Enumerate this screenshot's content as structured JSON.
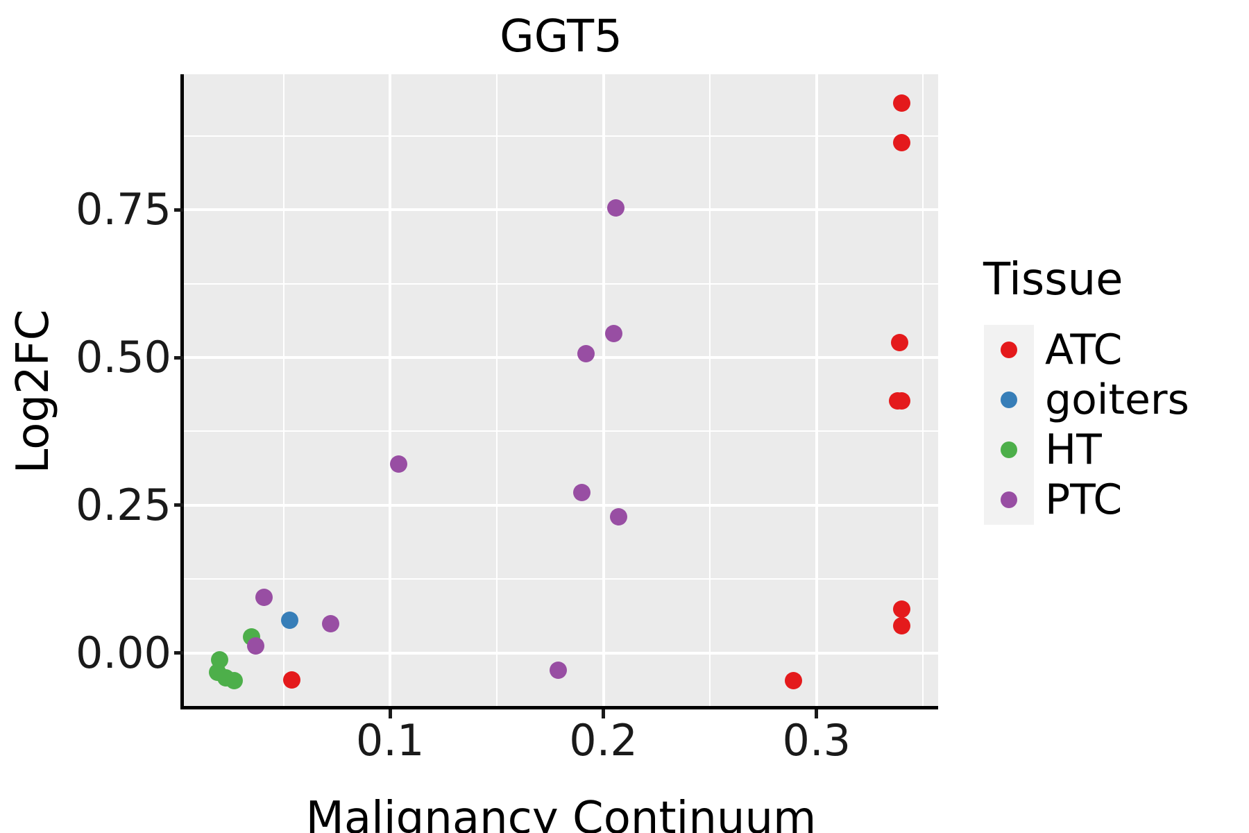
{
  "chart_data": {
    "type": "scatter",
    "title": "GGT5",
    "xlabel": "Malignancy Continuum",
    "ylabel": "Log2FC",
    "xlim": [
      0.0033,
      0.357
    ],
    "ylim": [
      -0.094,
      0.979
    ],
    "grid": true,
    "x_major_ticks": [
      0.1,
      0.2,
      0.3
    ],
    "x_tick_labels": [
      "0.1",
      "0.2",
      "0.3"
    ],
    "x_minor_gridlines": [
      0.05,
      0.15,
      0.25,
      0.35
    ],
    "y_major_ticks": [
      0.0,
      0.25,
      0.5,
      0.75
    ],
    "y_tick_labels": [
      "0.00",
      "0.25",
      "0.50",
      "0.75"
    ],
    "y_minor_gridlines": [
      0.125,
      0.375,
      0.625,
      0.875
    ],
    "legend": {
      "title": "Tissue",
      "position": "right",
      "entries": [
        "ATC",
        "goiters",
        "HT",
        "PTC"
      ]
    },
    "series": [
      {
        "name": "ATC",
        "color": "#E41A1C",
        "points": [
          [
            0.34,
            0.93
          ],
          [
            0.34,
            0.863
          ],
          [
            0.339,
            0.525
          ],
          [
            0.338,
            0.427
          ],
          [
            0.34,
            0.427
          ],
          [
            0.34,
            0.075
          ],
          [
            0.34,
            0.046
          ],
          [
            0.054,
            -0.045
          ],
          [
            0.289,
            -0.046
          ]
        ]
      },
      {
        "name": "goiters",
        "color": "#377EB8",
        "points": [
          [
            0.053,
            0.056
          ]
        ]
      },
      {
        "name": "HT",
        "color": "#4DAF4A",
        "points": [
          [
            0.035,
            0.027
          ],
          [
            0.02,
            -0.011
          ],
          [
            0.019,
            -0.032
          ],
          [
            0.023,
            -0.042
          ],
          [
            0.027,
            -0.046
          ]
        ]
      },
      {
        "name": "PTC",
        "color": "#984EA3",
        "points": [
          [
            0.206,
            0.753
          ],
          [
            0.205,
            0.54
          ],
          [
            0.192,
            0.507
          ],
          [
            0.104,
            0.32
          ],
          [
            0.19,
            0.272
          ],
          [
            0.207,
            0.231
          ],
          [
            0.041,
            0.094
          ],
          [
            0.072,
            0.05
          ],
          [
            0.037,
            0.012
          ],
          [
            0.179,
            -0.029
          ]
        ]
      }
    ],
    "colors": {
      "panel_bg": "#EBEBEB",
      "gridline": "#FFFFFF",
      "legend_key_bg": "#F2F2F2",
      "axis_line": "#000000",
      "title_text": "#000000",
      "tick_text": "#1A1A1A"
    }
  }
}
